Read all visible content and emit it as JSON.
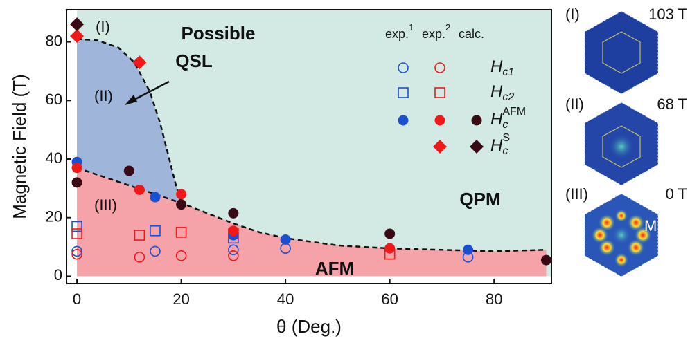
{
  "chart_data": {
    "type": "scatter",
    "x_label": "θ (Deg.)",
    "y_label": "Magnetic Field (T)",
    "xlim": [
      -2,
      91
    ],
    "ylim": [
      -2.5,
      91
    ],
    "xticks": [
      0,
      20,
      40,
      60,
      80
    ],
    "yticks": [
      0,
      20,
      40,
      60,
      80
    ],
    "sources": [
      {
        "label": "exp.",
        "ref": "1",
        "color": "#1a4fd0"
      },
      {
        "label": "exp.",
        "ref": "2",
        "color": "#f01818"
      },
      {
        "label": "calc.",
        "color": "#3a0a14"
      }
    ],
    "quantities": [
      {
        "symbol": "H",
        "sub": "c1",
        "marker": "open-circle",
        "data": [
          {
            "x": [
              0,
              15,
              30,
              40,
              75
            ],
            "y": [
              8.5,
              8.5,
              9,
              9.5,
              6.5
            ]
          },
          {
            "x": [
              0,
              12,
              20,
              30
            ],
            "y": [
              7.5,
              6.5,
              7,
              7
            ]
          },
          null
        ]
      },
      {
        "symbol": "H",
        "sub": "c2",
        "marker": "open-square",
        "data": [
          {
            "x": [
              0,
              15,
              30
            ],
            "y": [
              17,
              15.5,
              13
            ]
          },
          {
            "x": [
              0,
              12,
              20,
              30,
              60
            ],
            "y": [
              14.5,
              14,
              15,
              14.5,
              7.5
            ]
          },
          null
        ]
      },
      {
        "symbol": "H",
        "sub": "c",
        "sup": "AFM",
        "marker": "filled-circle",
        "data": [
          {
            "x": [
              0,
              15,
              30,
              40,
              75
            ],
            "y": [
              39,
              27,
              14,
              12.5,
              9
            ]
          },
          {
            "x": [
              0,
              12,
              20,
              30,
              60
            ],
            "y": [
              37,
              29.5,
              28,
              15.5,
              9.5
            ]
          },
          {
            "x": [
              0,
              10,
              20,
              30,
              60,
              90
            ],
            "y": [
              32,
              36,
              24.5,
              21.5,
              14.5,
              5.5
            ]
          }
        ]
      },
      {
        "symbol": "H",
        "sub": "c",
        "sup": "S",
        "marker": "diamond",
        "data": [
          null,
          {
            "x": [
              0,
              12
            ],
            "y": [
              82,
              73
            ]
          },
          {
            "x": [
              0
            ],
            "y": [
              86
            ]
          }
        ]
      }
    ],
    "boundaries": [
      {
        "x": [
          0,
          5,
          10,
          15,
          20,
          25,
          30,
          35,
          40,
          50,
          60,
          70,
          80,
          90
        ],
        "y": [
          37,
          34,
          31,
          28,
          25,
          21.5,
          18,
          15,
          13,
          10.5,
          9.5,
          9,
          8.5,
          9
        ]
      },
      {
        "x": [
          0,
          4,
          8,
          11,
          14,
          16,
          18,
          19,
          20
        ],
        "y": [
          81,
          80.5,
          78,
          73,
          63,
          52,
          38,
          31,
          25
        ]
      }
    ],
    "annotations": {
      "phase_1": "(I)",
      "phase_2": "(II)",
      "phase_3": "(III)",
      "qsl_line1": "Possible",
      "qsl_line2": "QSL",
      "qpm": "QPM",
      "afm": "AFM"
    },
    "insets": [
      {
        "label": "(I)",
        "field": "103 T"
      },
      {
        "label": "(II)",
        "field": "68 T"
      },
      {
        "label": "(III)",
        "field": "0 T",
        "point": "M"
      }
    ]
  }
}
